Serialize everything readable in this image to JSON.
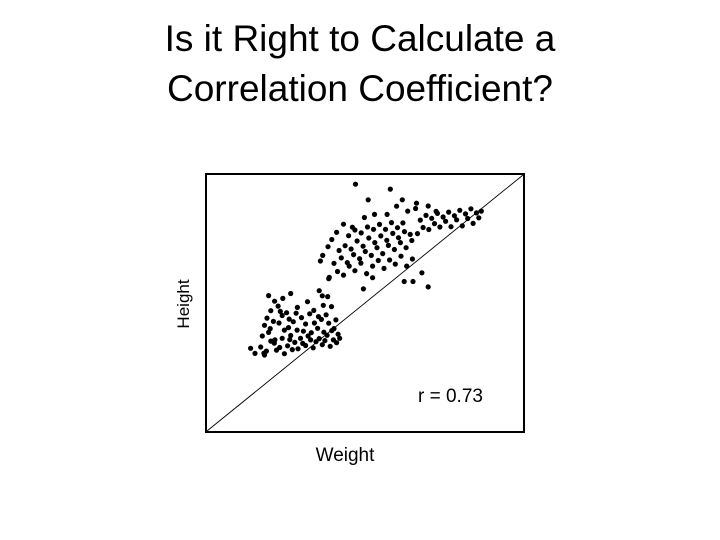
{
  "title": "Is it Right to Calculate a\nCorrelation Coefficient?",
  "chart_data": {
    "type": "scatter",
    "title": "",
    "xlabel": "Weight",
    "ylabel": "Height",
    "annotation": "r = 0.73",
    "grid": false,
    "legend": "none",
    "xlim": [
      0,
      100
    ],
    "ylim": [
      0,
      100
    ],
    "reference_line": {
      "x": [
        0,
        100
      ],
      "y": [
        0,
        100
      ]
    },
    "marker_color": "#000000",
    "series": [
      {
        "name": "",
        "points": [
          [
            13.8,
            32.3
          ],
          [
            15.2,
            30.3
          ],
          [
            17.0,
            32.8
          ],
          [
            18.0,
            30.4
          ],
          [
            18.8,
            31.2
          ],
          [
            20.2,
            35.1
          ],
          [
            21.3,
            34.3
          ],
          [
            22.0,
            31.6
          ],
          [
            23.0,
            32.6
          ],
          [
            23.8,
            36.2
          ],
          [
            24.5,
            30.2
          ],
          [
            25.5,
            33.3
          ],
          [
            26.2,
            35.7
          ],
          [
            27.0,
            31.8
          ],
          [
            27.8,
            34.6
          ],
          [
            28.8,
            32.1
          ],
          [
            29.6,
            36.2
          ],
          [
            30.3,
            34.2
          ],
          [
            31.2,
            33.4
          ],
          [
            32.0,
            37.1
          ],
          [
            32.8,
            35.6
          ],
          [
            33.6,
            32.5
          ],
          [
            34.5,
            34.9
          ],
          [
            35.5,
            36.1
          ],
          [
            36.5,
            33.7
          ],
          [
            37.3,
            35.3
          ],
          [
            38.0,
            37.4
          ],
          [
            39.0,
            33.1
          ],
          [
            40.0,
            35.6
          ],
          [
            41.0,
            34.5
          ],
          [
            42.0,
            36.2
          ],
          [
            17.5,
            37.1
          ],
          [
            19.5,
            38.5
          ],
          [
            21.5,
            35.6
          ],
          [
            24.5,
            39.4
          ],
          [
            26.5,
            37.3
          ],
          [
            28.5,
            39.4
          ],
          [
            30.5,
            39.0
          ],
          [
            33.0,
            38.4
          ],
          [
            35.0,
            40.1
          ],
          [
            37.0,
            38.6
          ],
          [
            39.5,
            39.2
          ],
          [
            18.2,
            41.3
          ],
          [
            20.0,
            40.0
          ],
          [
            22.8,
            42.2
          ],
          [
            25.8,
            40.4
          ],
          [
            27.3,
            42.7
          ],
          [
            31.2,
            41.8
          ],
          [
            34.0,
            42.2
          ],
          [
            36.2,
            43.6
          ],
          [
            38.5,
            42.1
          ],
          [
            40.2,
            40.0
          ],
          [
            19.0,
            44.1
          ],
          [
            21.0,
            42.8
          ],
          [
            23.8,
            45.1
          ],
          [
            26.0,
            43.7
          ],
          [
            28.2,
            46.0
          ],
          [
            29.9,
            44.3
          ],
          [
            32.5,
            45.8
          ],
          [
            35.3,
            44.7
          ],
          [
            37.7,
            45.4
          ],
          [
            40.8,
            43.4
          ],
          [
            20.2,
            47.0
          ],
          [
            22.5,
            48.8
          ],
          [
            25.2,
            46.2
          ],
          [
            28.6,
            48.3
          ],
          [
            33.8,
            47.1
          ],
          [
            36.8,
            49.1
          ],
          [
            39.4,
            48.6
          ],
          [
            21.4,
            50.7
          ],
          [
            24.0,
            51.8
          ],
          [
            31.8,
            50.5
          ],
          [
            38.2,
            52.5
          ],
          [
            19.5,
            52.9
          ],
          [
            26.5,
            53.7
          ],
          [
            35.5,
            54.8
          ],
          [
            18.2,
            29.7
          ],
          [
            41.5,
            37.8
          ],
          [
            36.5,
            52.8
          ],
          [
            23.2,
            46.7
          ],
          [
            38.7,
            60.0
          ],
          [
            41.3,
            62.3
          ],
          [
            43.2,
            60.9
          ],
          [
            45.0,
            64.4
          ],
          [
            46.8,
            62.6
          ],
          [
            48.7,
            65.6
          ],
          [
            50.5,
            61.5
          ],
          [
            52.4,
            64.4
          ],
          [
            54.2,
            66.6
          ],
          [
            56.0,
            63.5
          ],
          [
            57.8,
            66.8
          ],
          [
            59.6,
            65.2
          ],
          [
            61.4,
            68.3
          ],
          [
            63.2,
            64.4
          ],
          [
            65.0,
            67.2
          ],
          [
            40.2,
            65.5
          ],
          [
            42.5,
            67.6
          ],
          [
            44.4,
            65.8
          ],
          [
            46.4,
            68.9
          ],
          [
            48.3,
            67.3
          ],
          [
            50.1,
            70.1
          ],
          [
            52.0,
            68.6
          ],
          [
            53.8,
            71.6
          ],
          [
            55.6,
            69.3
          ],
          [
            57.4,
            72.5
          ],
          [
            59.3,
            70.9
          ],
          [
            61.2,
            73.6
          ],
          [
            63.0,
            71.6
          ],
          [
            64.8,
            74.4
          ],
          [
            41.8,
            70.5
          ],
          [
            43.7,
            72.4
          ],
          [
            45.6,
            71.1
          ],
          [
            47.5,
            74.2
          ],
          [
            49.4,
            72.2
          ],
          [
            51.2,
            75.4
          ],
          [
            53.1,
            73.6
          ],
          [
            55.0,
            76.2
          ],
          [
            56.9,
            74.5
          ],
          [
            58.8,
            77.2
          ],
          [
            60.6,
            75.5
          ],
          [
            62.5,
            77.9
          ],
          [
            64.3,
            76.8
          ],
          [
            44.8,
            76.3
          ],
          [
            46.8,
            78.5
          ],
          [
            48.8,
            77.4
          ],
          [
            50.8,
            79.7
          ],
          [
            52.7,
            78.8
          ],
          [
            54.6,
            80.7
          ],
          [
            56.5,
            78.8
          ],
          [
            58.4,
            81.4
          ],
          [
            60.3,
            79.4
          ],
          [
            62.0,
            81.3
          ],
          [
            66.6,
            77.1
          ],
          [
            68.4,
            79.5
          ],
          [
            70.2,
            78.7
          ],
          [
            72.0,
            81.0
          ],
          [
            73.7,
            79.7
          ],
          [
            75.5,
            81.9
          ],
          [
            77.2,
            79.8
          ],
          [
            79.0,
            82.5
          ],
          [
            80.8,
            80.1
          ],
          [
            82.5,
            83.0
          ],
          [
            84.2,
            81.1
          ],
          [
            86.0,
            83.3
          ],
          [
            67.5,
            82.4
          ],
          [
            69.3,
            84.2
          ],
          [
            71.1,
            83.1
          ],
          [
            72.9,
            85.0
          ],
          [
            74.7,
            83.6
          ],
          [
            76.5,
            85.5
          ],
          [
            78.3,
            84.1
          ],
          [
            80.0,
            86.2
          ],
          [
            81.8,
            84.8
          ],
          [
            83.5,
            86.8
          ],
          [
            85.3,
            85.2
          ],
          [
            86.8,
            85.9
          ],
          [
            70.0,
            87.9
          ],
          [
            72.5,
            85.8
          ],
          [
            66.0,
            86.9
          ],
          [
            63.5,
            85.9
          ],
          [
            60.0,
            87.8
          ],
          [
            57.0,
            84.6
          ],
          [
            53.0,
            84.6
          ],
          [
            49.8,
            83.4
          ],
          [
            46.0,
            79.6
          ],
          [
            43.2,
            80.8
          ],
          [
            41.0,
            77.6
          ],
          [
            39.5,
            74.8
          ],
          [
            38.3,
            72.0
          ],
          [
            36.6,
            68.6
          ],
          [
            35.9,
            66.4
          ],
          [
            65.2,
            58.4
          ],
          [
            68.0,
            61.8
          ],
          [
            70.0,
            56.3
          ],
          [
            62.4,
            58.4
          ],
          [
            52.4,
            59.9
          ],
          [
            49.5,
            55.5
          ],
          [
            38.5,
            59.5
          ],
          [
            51.0,
            90.3
          ],
          [
            61.8,
            90.3
          ],
          [
            58.0,
            94.5
          ],
          [
            47.0,
            96.4
          ],
          [
            66.3,
            89.0
          ]
        ]
      }
    ]
  }
}
